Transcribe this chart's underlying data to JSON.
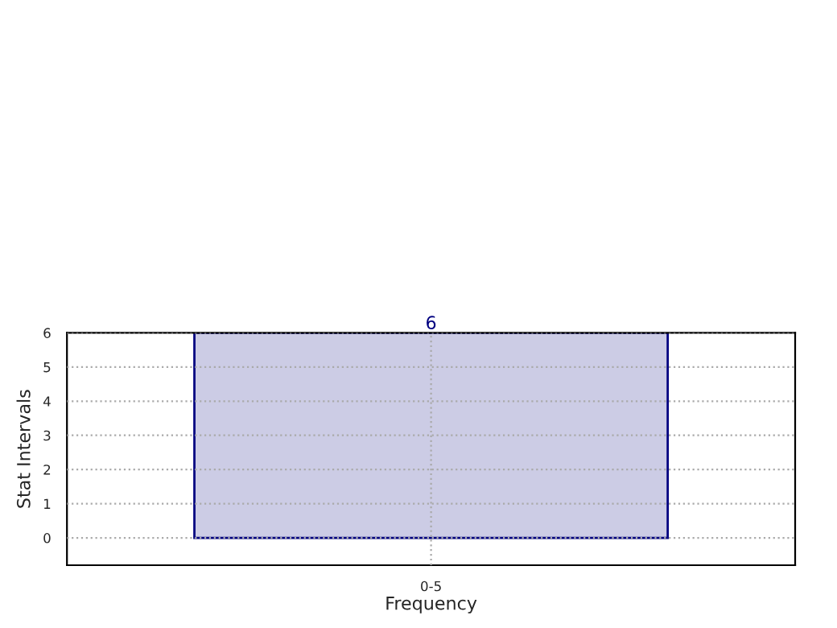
{
  "chart_data": {
    "type": "bar",
    "xlabel": "Frequency",
    "ylabel": "Stat Intervals",
    "categories": [
      "0-5"
    ],
    "series": [
      {
        "color": "#cccce5",
        "values": [
          6
        ]
      }
    ],
    "data_labels": true,
    "ylim": [
      -0.8,
      6
    ],
    "yticks": [
      0,
      1,
      2,
      3,
      4,
      5,
      6
    ],
    "grid": true,
    "legend": false
  }
}
